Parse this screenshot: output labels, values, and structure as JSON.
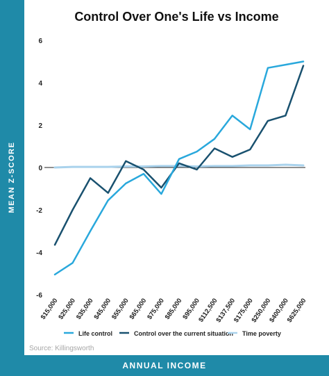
{
  "chart_data": {
    "type": "line",
    "title": "Control Over One's Life vs Income",
    "xlabel": "ANNUAL INCOME",
    "ylabel": "MEAN Z-SCORE",
    "source": "Source: Killingsworth",
    "categories": [
      "$15,000",
      "$25,000",
      "$35,000",
      "$45,000",
      "$55,000",
      "$65,000",
      "$75,000",
      "$85,000",
      "$95,000",
      "$112,500",
      "$137,500",
      "$175,000",
      "$250,000",
      "$400,000",
      "$625,000"
    ],
    "series": [
      {
        "name": "Life control",
        "color": "#29a8dc",
        "values": [
          -5.05,
          -4.5,
          -3.0,
          -1.55,
          -0.75,
          -0.3,
          -1.25,
          0.4,
          0.75,
          1.35,
          2.45,
          1.8,
          4.7,
          4.85,
          5.0
        ]
      },
      {
        "name": "Control over the current situation",
        "color": "#19516f",
        "values": [
          -3.65,
          -2.0,
          -0.5,
          -1.2,
          0.3,
          -0.1,
          -0.95,
          0.2,
          -0.1,
          0.9,
          0.5,
          0.85,
          2.2,
          2.45,
          4.8
        ]
      },
      {
        "name": "Time poverty",
        "color": "#a9d2ec",
        "values": [
          0.0,
          0.03,
          0.03,
          0.03,
          0.05,
          0.05,
          0.07,
          0.07,
          0.05,
          0.07,
          0.07,
          0.1,
          0.1,
          0.13,
          0.1
        ]
      }
    ],
    "yticks": [
      -6,
      -4,
      -2,
      0,
      2,
      4,
      6
    ],
    "ylim": [
      -6,
      6
    ],
    "grid": false,
    "legend": "bottom"
  }
}
